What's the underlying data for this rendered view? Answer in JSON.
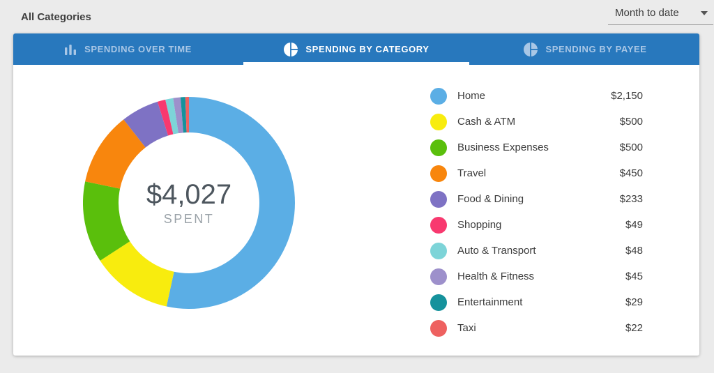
{
  "header": {
    "filter_label": "All Categories",
    "date_range_value": "Month to date"
  },
  "tabs": {
    "items": [
      {
        "label": "SPENDING OVER TIME",
        "icon": "bar-chart",
        "active": false
      },
      {
        "label": "SPENDING BY CATEGORY",
        "icon": "pie-chart",
        "active": true
      },
      {
        "label": "SPENDING BY PAYEE",
        "icon": "pie-chart",
        "active": false
      }
    ]
  },
  "colors": {
    "tab_bar": "#2878bd",
    "tab_inactive_text": "#a9c7e6",
    "tab_active_text": "#ffffff",
    "page_background": "#ebebeb"
  },
  "chart_data": {
    "type": "pie",
    "donut": true,
    "title": "Spending by Category",
    "center_total": "$4,027",
    "center_label": "SPENT",
    "legend_position": "right",
    "categories": [
      "Home",
      "Cash & ATM",
      "Business Expenses",
      "Travel",
      "Food & Dining",
      "Shopping",
      "Auto & Transport",
      "Health & Fitness",
      "Entertainment",
      "Taxi"
    ],
    "values": [
      2150,
      500,
      500,
      450,
      233,
      49,
      48,
      45,
      29,
      22
    ],
    "display_values": [
      "$2,150",
      "$500",
      "$500",
      "$450",
      "$233",
      "$49",
      "$48",
      "$45",
      "$29",
      "$22"
    ],
    "colors": [
      "#5baee5",
      "#f8ec0e",
      "#5abf0c",
      "#f8860d",
      "#7e72c4",
      "#f8396f",
      "#7dd4d8",
      "#9d90cb",
      "#15929c",
      "#ee6160"
    ]
  }
}
